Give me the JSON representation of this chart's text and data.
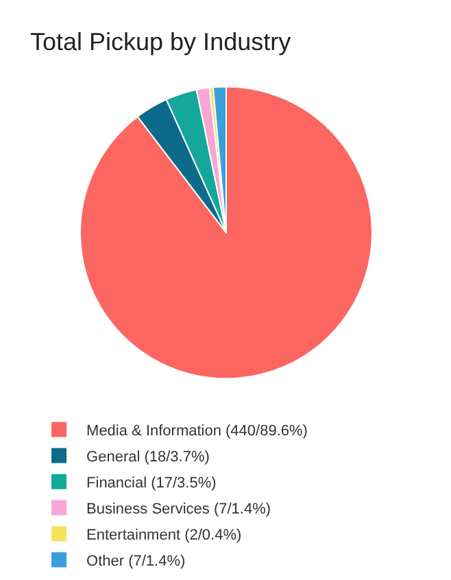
{
  "chart_data": {
    "type": "pie",
    "title": "Total Pickup by Industry",
    "categories": [
      "Media & Information (440/89.6%)",
      "General (18/3.7%)",
      "Financial (17/3.5%)",
      "Business Services (7/1.4%)",
      "Entertainment (2/0.4%)",
      "Other (7/1.4%)"
    ],
    "values": [
      440,
      18,
      17,
      7,
      2,
      7
    ],
    "colors": [
      "#fc6660",
      "#0e6a8a",
      "#14a89c",
      "#f7a6d6",
      "#f8e25c",
      "#3aa0dc"
    ],
    "legend": "bottom left"
  }
}
